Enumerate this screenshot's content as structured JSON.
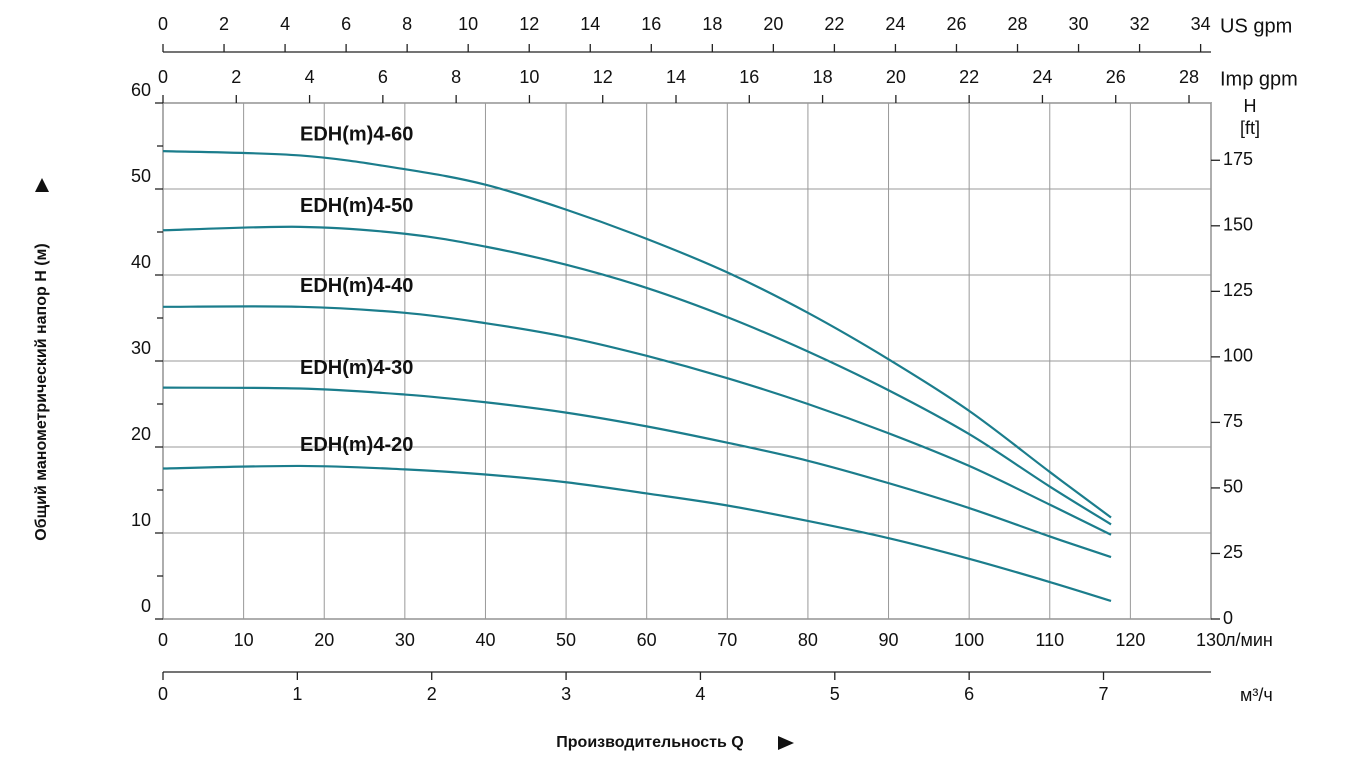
{
  "chart_data": {
    "type": "line",
    "x": [
      0,
      17,
      30,
      40,
      50,
      60,
      70,
      80,
      90,
      100,
      110,
      117.6
    ],
    "xlim": [
      0,
      130
    ],
    "xticks": [
      0,
      10,
      20,
      30,
      40,
      50,
      60,
      70,
      80,
      90,
      100,
      110,
      120,
      130
    ],
    "x_unit": "л/мин",
    "x_label": "Производительность Q",
    "ylim": [
      0,
      60
    ],
    "yticks": [
      0,
      10,
      20,
      30,
      40,
      50,
      60
    ],
    "yticks_minor": [
      5,
      15,
      25,
      35,
      45,
      55
    ],
    "y_label": "Общий манометрический напор H (м)",
    "y2lim": [
      0,
      196.85
    ],
    "y2ticks": [
      0,
      25,
      50,
      75,
      100,
      125,
      150,
      175
    ],
    "y2_label_lines": [
      "H",
      "[ft]"
    ],
    "top_axes": [
      {
        "label": "US gpm",
        "lim": [
          0,
          34.34
        ],
        "ticks": [
          0,
          2,
          4,
          6,
          8,
          10,
          12,
          14,
          16,
          18,
          20,
          22,
          24,
          26,
          28,
          30,
          32,
          34
        ]
      },
      {
        "label": "Imp gpm",
        "lim": [
          0,
          28.6
        ],
        "ticks": [
          0,
          2,
          4,
          6,
          8,
          10,
          12,
          14,
          16,
          18,
          20,
          22,
          24,
          26,
          28
        ]
      }
    ],
    "bottom_axis2": {
      "label": "м³/ч",
      "lim": [
        0,
        7.8
      ],
      "ticks": [
        0,
        1,
        2,
        3,
        4,
        5,
        6,
        7
      ]
    },
    "grid": true,
    "series": [
      {
        "name": "EDH(m)4-60",
        "color": "#1b7d8c",
        "values": [
          54.4,
          53.9,
          52.3,
          50.5,
          47.6,
          44.2,
          40.3,
          35.6,
          30.2,
          24.2,
          17.1,
          11.8
        ]
      },
      {
        "name": "EDH(m)4-50",
        "color": "#1b7d8c",
        "values": [
          45.2,
          45.6,
          44.8,
          43.3,
          41.2,
          38.5,
          35.1,
          31.1,
          26.6,
          21.5,
          15.4,
          11.0
        ]
      },
      {
        "name": "EDH(m)4-40",
        "color": "#1b7d8c",
        "values": [
          36.3,
          36.3,
          35.6,
          34.4,
          32.8,
          30.6,
          28.0,
          25.0,
          21.6,
          17.8,
          13.3,
          9.8
        ]
      },
      {
        "name": "EDH(m)4-30",
        "color": "#1b7d8c",
        "values": [
          26.9,
          26.8,
          26.1,
          25.2,
          24.0,
          22.4,
          20.5,
          18.4,
          15.8,
          12.9,
          9.6,
          7.2
        ]
      },
      {
        "name": "EDH(m)4-20",
        "color": "#1b7d8c",
        "values": [
          17.5,
          17.8,
          17.4,
          16.8,
          15.9,
          14.6,
          13.2,
          11.4,
          9.4,
          7.0,
          4.3,
          2.1
        ]
      }
    ]
  }
}
